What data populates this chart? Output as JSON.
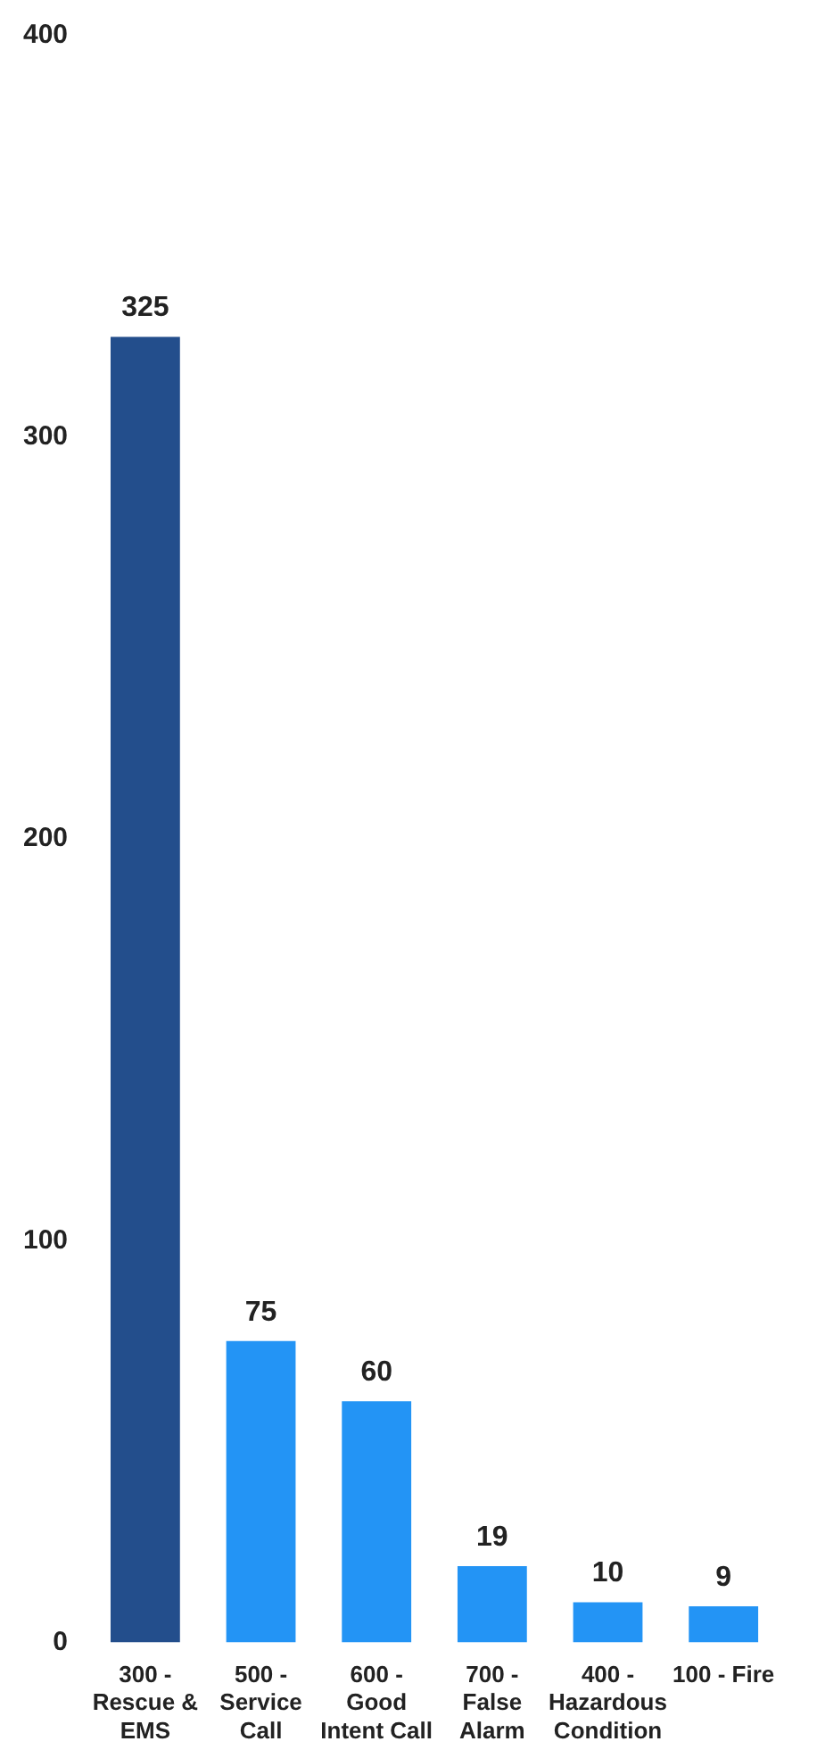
{
  "chart_data": {
    "type": "bar",
    "categories": [
      "300 - Rescue & EMS",
      "500 - Service Call",
      "600 - Good Intent Call",
      "700 - False Alarm",
      "400 - Hazardous Condition",
      "100 - Fire"
    ],
    "values": [
      325,
      75,
      60,
      19,
      10,
      9
    ],
    "colors": [
      "#234e8c",
      "#2394f5",
      "#2394f5",
      "#2394f5",
      "#2394f5",
      "#2394f5"
    ],
    "ylim": [
      0,
      400
    ],
    "yticks": [
      0,
      100,
      200,
      300,
      400
    ],
    "data_labels": true
  }
}
